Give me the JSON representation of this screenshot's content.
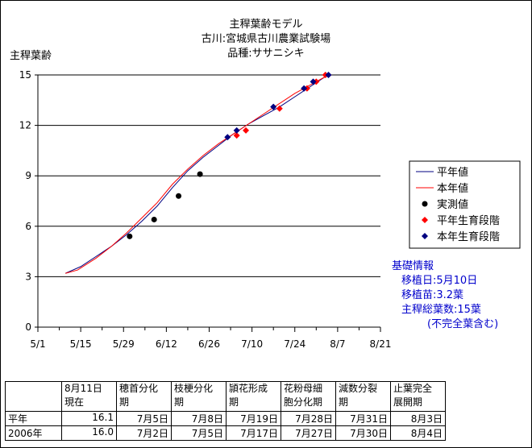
{
  "chart_data": {
    "type": "line",
    "title": [
      "主稈葉齢モデル",
      "古川:宮城県古川農業試験場",
      "品種:ササニシキ"
    ],
    "ylabel": "主稈葉齢",
    "xlabel": "",
    "ylim": [
      0,
      15
    ],
    "yticks": [
      0,
      3,
      6,
      9,
      12,
      15
    ],
    "xticks": [
      "5/1",
      "5/15",
      "5/29",
      "6/12",
      "6/26",
      "7/10",
      "7/24",
      "8/7",
      "8/21"
    ],
    "grid": "horizontal",
    "legend_position": "right",
    "series": [
      {
        "name": "平年値",
        "kind": "line",
        "color": "#000080",
        "x": [
          "5/10",
          "5/15",
          "5/20",
          "5/25",
          "5/30",
          "6/4",
          "6/9",
          "6/14",
          "6/19",
          "6/24",
          "6/29",
          "7/4",
          "7/9",
          "7/14",
          "7/19",
          "7/24",
          "7/29",
          "8/3",
          "8/5"
        ],
        "y": [
          3.2,
          3.6,
          4.2,
          4.8,
          5.5,
          6.3,
          7.2,
          8.3,
          9.3,
          10.1,
          10.8,
          11.5,
          12.1,
          12.6,
          13.1,
          13.7,
          14.3,
          14.9,
          15.0
        ]
      },
      {
        "name": "本年値",
        "kind": "line",
        "color": "#ff0000",
        "x": [
          "5/10",
          "5/14",
          "5/20",
          "5/25",
          "5/30",
          "6/4",
          "6/9",
          "6/14",
          "6/19",
          "6/24",
          "6/29",
          "7/4",
          "7/9",
          "7/14",
          "7/19",
          "7/24",
          "7/29",
          "8/3",
          "8/5"
        ],
        "y": [
          3.2,
          3.4,
          4.1,
          4.8,
          5.6,
          6.5,
          7.4,
          8.5,
          9.4,
          10.2,
          10.9,
          11.5,
          12.1,
          12.7,
          13.3,
          13.9,
          14.4,
          14.9,
          15.0
        ]
      },
      {
        "name": "実測値",
        "kind": "marker",
        "marker": "circle",
        "color": "#000000",
        "x": [
          "5/31",
          "6/8",
          "6/16",
          "6/23"
        ],
        "y": [
          5.4,
          6.4,
          7.8,
          9.1
        ]
      },
      {
        "name": "平年生育段階",
        "kind": "marker",
        "marker": "diamond",
        "color": "#ff0000",
        "x": [
          "7/5",
          "7/8",
          "7/19",
          "7/28",
          "7/31",
          "8/3"
        ],
        "y": [
          11.4,
          11.7,
          13.0,
          14.2,
          14.6,
          15.0
        ]
      },
      {
        "name": "本年生育段階",
        "kind": "marker",
        "marker": "diamond",
        "color": "#000080",
        "x": [
          "7/2",
          "7/5",
          "7/17",
          "7/27",
          "7/30",
          "8/4"
        ],
        "y": [
          11.3,
          11.7,
          13.1,
          14.2,
          14.6,
          15.0
        ]
      }
    ]
  },
  "info": {
    "heading": "基礎情報",
    "transplant_date": "移植日:5月10日",
    "seedling": "移植苗:3.2葉",
    "total_leaves": "主稈総葉数:15葉",
    "note": "(不完全葉含む)"
  },
  "stage_table": {
    "header": [
      "",
      "8月11日\n現在",
      "穂首分化\n期",
      "枝梗分化\n期",
      "頴花形成\n期",
      "花粉母細\n胞分化期",
      "減数分裂\n期",
      "止葉完全\n展開期"
    ],
    "rows": [
      [
        "平年",
        "16.1",
        "7月5日",
        "7月8日",
        "7月19日",
        "7月28日",
        "7月31日",
        "8月3日"
      ],
      [
        "2006年",
        "16.0",
        "7月2日",
        "7月5日",
        "7月17日",
        "7月27日",
        "7月30日",
        "8月4日"
      ]
    ]
  }
}
